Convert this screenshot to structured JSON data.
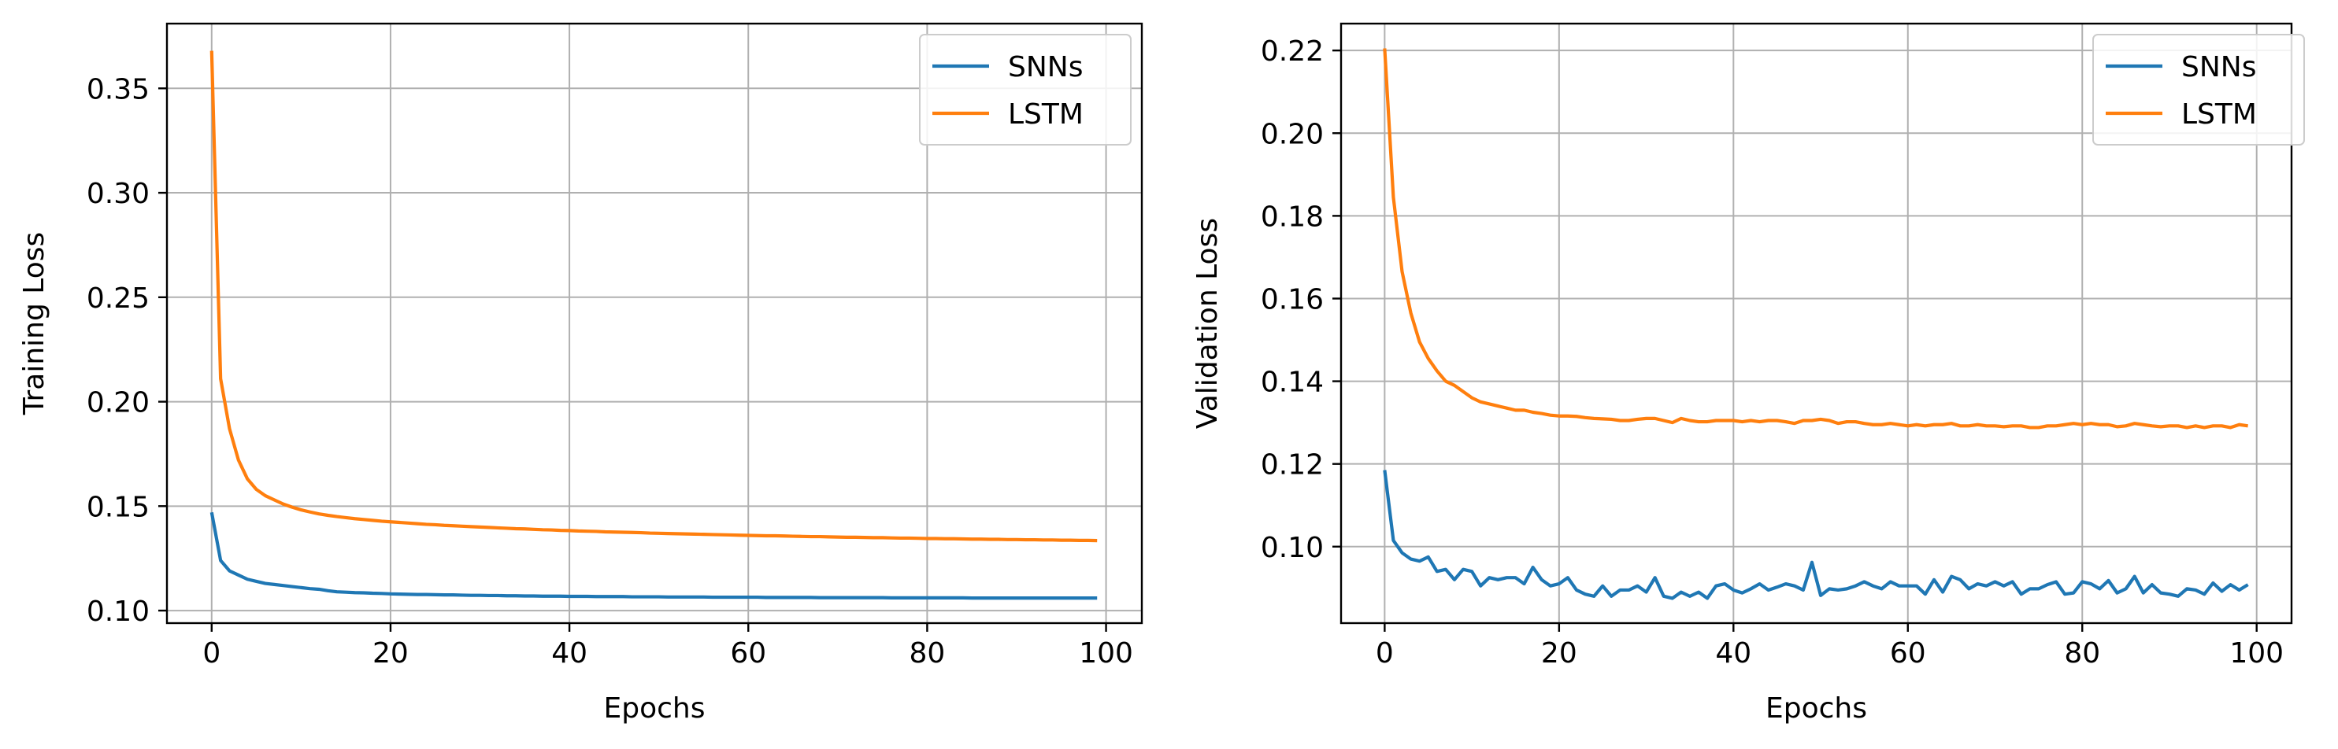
{
  "chart_data": [
    {
      "type": "line",
      "title": "",
      "xlabel": "Epochs",
      "ylabel": "Training Loss",
      "xlim": [
        -5,
        104
      ],
      "ylim": [
        0.094,
        0.381
      ],
      "xticks": [
        0,
        20,
        40,
        60,
        80,
        100
      ],
      "yticks": [
        0.1,
        0.15,
        0.2,
        0.25,
        0.3,
        0.35
      ],
      "xtick_labels": [
        "0",
        "20",
        "40",
        "60",
        "80",
        "100"
      ],
      "ytick_labels": [
        "0.10",
        "0.15",
        "0.20",
        "0.25",
        "0.30",
        "0.35"
      ],
      "grid": true,
      "legend": "top-right",
      "series": [
        {
          "name": "SNNs",
          "color": "#1f77b4",
          "values": [
            0.147,
            0.124,
            0.119,
            0.117,
            0.115,
            0.114,
            0.113,
            0.1125,
            0.112,
            0.1115,
            0.111,
            0.1105,
            0.1102,
            0.1095,
            0.109,
            0.1088,
            0.1086,
            0.1085,
            0.1083,
            0.1082,
            0.108,
            0.1079,
            0.1078,
            0.1077,
            0.1077,
            0.1076,
            0.1075,
            0.1075,
            0.1074,
            0.1073,
            0.1073,
            0.1072,
            0.1072,
            0.1071,
            0.1071,
            0.107,
            0.107,
            0.1069,
            0.1069,
            0.1069,
            0.1068,
            0.1068,
            0.1068,
            0.1067,
            0.1067,
            0.1067,
            0.1067,
            0.1066,
            0.1066,
            0.1066,
            0.1066,
            0.1065,
            0.1065,
            0.1065,
            0.1065,
            0.1065,
            0.1064,
            0.1064,
            0.1064,
            0.1064,
            0.1064,
            0.1064,
            0.1063,
            0.1063,
            0.1063,
            0.1063,
            0.1063,
            0.1063,
            0.1062,
            0.1062,
            0.1062,
            0.1062,
            0.1062,
            0.1062,
            0.1062,
            0.1062,
            0.1061,
            0.1061,
            0.1061,
            0.1061,
            0.1061,
            0.1061,
            0.1061,
            0.1061,
            0.1061,
            0.106,
            0.106,
            0.106,
            0.106,
            0.106,
            0.106,
            0.106,
            0.106,
            0.106,
            0.106,
            0.106,
            0.106,
            0.106,
            0.106,
            0.106
          ]
        },
        {
          "name": "LSTM",
          "color": "#ff7f0e",
          "values": [
            0.368,
            0.211,
            0.187,
            0.172,
            0.163,
            0.158,
            0.155,
            0.153,
            0.151,
            0.1495,
            0.1482,
            0.1472,
            0.1463,
            0.1456,
            0.145,
            0.1445,
            0.144,
            0.1436,
            0.1432,
            0.1428,
            0.1425,
            0.1422,
            0.1419,
            0.1416,
            0.1413,
            0.1411,
            0.1408,
            0.1406,
            0.1404,
            0.1402,
            0.14,
            0.1398,
            0.1396,
            0.1394,
            0.1392,
            0.1391,
            0.1389,
            0.1387,
            0.1386,
            0.1384,
            0.1383,
            0.1381,
            0.138,
            0.1379,
            0.1377,
            0.1376,
            0.1375,
            0.1374,
            0.1373,
            0.1371,
            0.137,
            0.1369,
            0.1368,
            0.1367,
            0.1366,
            0.1365,
            0.1364,
            0.1363,
            0.1362,
            0.1361,
            0.136,
            0.1359,
            0.1358,
            0.1358,
            0.1357,
            0.1356,
            0.1355,
            0.1354,
            0.1354,
            0.1353,
            0.1352,
            0.1351,
            0.1351,
            0.135,
            0.1349,
            0.1349,
            0.1348,
            0.1347,
            0.1347,
            0.1346,
            0.1345,
            0.1345,
            0.1344,
            0.1344,
            0.1343,
            0.1342,
            0.1342,
            0.1341,
            0.1341,
            0.134,
            0.134,
            0.1339,
            0.1339,
            0.1338,
            0.1338,
            0.1337,
            0.1337,
            0.1336,
            0.1336,
            0.1335
          ]
        }
      ]
    },
    {
      "type": "line",
      "title": "",
      "xlabel": "Epochs",
      "ylabel": "Validation Loss",
      "xlim": [
        -5,
        104
      ],
      "ylim": [
        0.0815,
        0.2265
      ],
      "xticks": [
        0,
        20,
        40,
        60,
        80,
        100
      ],
      "yticks": [
        0.1,
        0.12,
        0.14,
        0.16,
        0.18,
        0.2,
        0.22
      ],
      "xtick_labels": [
        "0",
        "20",
        "40",
        "60",
        "80",
        "100"
      ],
      "ytick_labels": [
        "0.10",
        "0.12",
        "0.14",
        "0.16",
        "0.18",
        "0.20",
        "0.22"
      ],
      "grid": true,
      "legend": "top-right",
      "series": [
        {
          "name": "SNNs",
          "color": "#1f77b4",
          "values": [
            0.1185,
            0.1015,
            0.0985,
            0.097,
            0.0965,
            0.0975,
            0.094,
            0.0945,
            0.092,
            0.0945,
            0.094,
            0.0905,
            0.0925,
            0.092,
            0.0925,
            0.0925,
            0.091,
            0.095,
            0.092,
            0.0905,
            0.091,
            0.0925,
            0.0895,
            0.0885,
            0.088,
            0.0905,
            0.088,
            0.0895,
            0.0895,
            0.0905,
            0.089,
            0.0925,
            0.088,
            0.0875,
            0.089,
            0.088,
            0.089,
            0.0875,
            0.0905,
            0.091,
            0.0895,
            0.0888,
            0.0898,
            0.091,
            0.0895,
            0.0902,
            0.091,
            0.0905,
            0.0895,
            0.0962,
            0.0882,
            0.0898,
            0.0895,
            0.0898,
            0.0905,
            0.0915,
            0.0905,
            0.0898,
            0.0915,
            0.0905,
            0.0905,
            0.0905,
            0.0885,
            0.092,
            0.089,
            0.0928,
            0.092,
            0.0898,
            0.091,
            0.0905,
            0.0915,
            0.0905,
            0.0915,
            0.0885,
            0.0898,
            0.0898,
            0.0908,
            0.0915,
            0.0885,
            0.0888,
            0.0915,
            0.091,
            0.0898,
            0.0918,
            0.0888,
            0.0898,
            0.0928,
            0.0888,
            0.0908,
            0.0888,
            0.0885,
            0.088,
            0.0898,
            0.0895,
            0.0885,
            0.0912,
            0.0892,
            0.0908,
            0.0895,
            0.0908
          ]
        },
        {
          "name": "LSTM",
          "color": "#ff7f0e",
          "values": [
            0.2205,
            0.1845,
            0.1665,
            0.1565,
            0.1495,
            0.1455,
            0.1425,
            0.14,
            0.139,
            0.1375,
            0.136,
            0.135,
            0.1345,
            0.134,
            0.1335,
            0.133,
            0.133,
            0.1325,
            0.1322,
            0.1318,
            0.1316,
            0.1316,
            0.1315,
            0.1312,
            0.131,
            0.1309,
            0.1308,
            0.1305,
            0.1305,
            0.1308,
            0.131,
            0.131,
            0.1305,
            0.13,
            0.131,
            0.1305,
            0.1302,
            0.1302,
            0.1305,
            0.1305,
            0.1305,
            0.1302,
            0.1305,
            0.1302,
            0.1305,
            0.1305,
            0.1302,
            0.1298,
            0.1305,
            0.1305,
            0.1308,
            0.1305,
            0.1298,
            0.1302,
            0.1302,
            0.1298,
            0.1295,
            0.1295,
            0.1298,
            0.1295,
            0.1292,
            0.1295,
            0.1292,
            0.1295,
            0.1295,
            0.1298,
            0.1292,
            0.1292,
            0.1295,
            0.1292,
            0.1292,
            0.129,
            0.1292,
            0.1292,
            0.1288,
            0.1288,
            0.1292,
            0.1292,
            0.1295,
            0.1298,
            0.1295,
            0.1298,
            0.1295,
            0.1295,
            0.129,
            0.1292,
            0.1298,
            0.1295,
            0.1292,
            0.129,
            0.1292,
            0.1292,
            0.1288,
            0.1292,
            0.1288,
            0.1292,
            0.1292,
            0.1288,
            0.1295,
            0.1292
          ]
        }
      ]
    }
  ]
}
